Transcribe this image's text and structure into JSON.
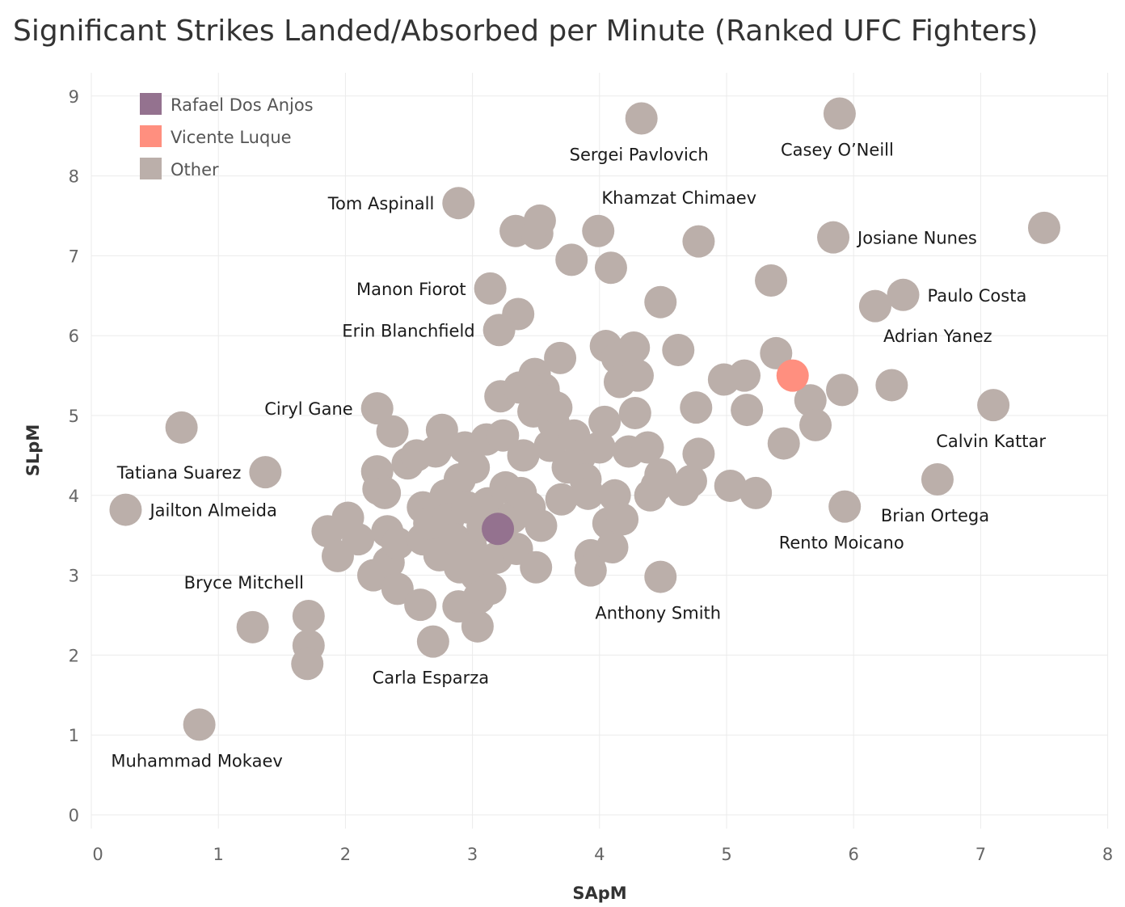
{
  "chart_data": {
    "type": "scatter",
    "title": "Significant Strikes Landed/Absorbed per Minute (Ranked UFC Fighters)",
    "xlabel": "SApM",
    "ylabel": "SLpM",
    "xlim": [
      0,
      8
    ],
    "ylim": [
      0,
      9.3
    ],
    "xticks": [
      0,
      1,
      2,
      3,
      4,
      5,
      6,
      7,
      8
    ],
    "yticks": [
      0,
      1,
      2,
      3,
      4,
      5,
      6,
      7,
      8,
      9
    ],
    "grid": true,
    "legend_position": "top-left",
    "colors": {
      "Rafael Dos Anjos": "#94728f",
      "Vicente Luque": "#ff8f7f",
      "Other": "#bbafaa"
    },
    "legend": [
      "Rafael Dos Anjos",
      "Vicente Luque",
      "Other"
    ],
    "highlights": [
      {
        "name": "Rafael Dos Anjos",
        "x": 3.2,
        "y": 3.58
      },
      {
        "name": "Vicente Luque",
        "x": 5.52,
        "y": 5.5
      }
    ],
    "labeled_points": [
      {
        "name": "Sergei Pavlovich",
        "x": 4.33,
        "y": 8.72,
        "anchor": "middle"
      },
      {
        "name": "Casey O’Neill",
        "x": 5.89,
        "y": 8.78,
        "anchor": "middle"
      },
      {
        "name": "Tom Aspinall",
        "x": 2.89,
        "y": 7.66,
        "anchor": "end"
      },
      {
        "name": "Khamzat Chimaev",
        "x": 3.99,
        "y": 7.31,
        "anchor": "above"
      },
      {
        "name": "Josiane Nunes",
        "x": 5.84,
        "y": 7.23,
        "anchor": "start"
      },
      {
        "name": "Manon Fiorot",
        "x": 3.14,
        "y": 6.59,
        "anchor": "end"
      },
      {
        "name": "Paulo Costa",
        "x": 6.39,
        "y": 6.51,
        "anchor": "start"
      },
      {
        "name": "Erin Blanchfield",
        "x": 3.21,
        "y": 6.07,
        "anchor": "end"
      },
      {
        "name": "Adrian Yanez",
        "x": 5.39,
        "y": 5.78,
        "anchor": "upper-right"
      },
      {
        "name": "Ciryl Gane",
        "x": 2.25,
        "y": 5.09,
        "anchor": "end"
      },
      {
        "name": "Calvin Kattar",
        "x": 7.1,
        "y": 5.13,
        "anchor": "below"
      },
      {
        "name": "Tatiana Suarez",
        "x": 1.37,
        "y": 4.29,
        "anchor": "end"
      },
      {
        "name": "Jailton Almeida",
        "x": 0.27,
        "y": 3.82,
        "anchor": "start"
      },
      {
        "name": "Brian Ortega",
        "x": 6.66,
        "y": 4.2,
        "anchor": "below"
      },
      {
        "name": "Rento Moicano",
        "x": 5.93,
        "y": 3.86,
        "anchor": "lower-left"
      },
      {
        "name": "Bryce Mitchell",
        "x": 1.71,
        "y": 2.49,
        "anchor": "above-left"
      },
      {
        "name": "Anthony Smith",
        "x": 4.48,
        "y": 2.98,
        "anchor": "below"
      },
      {
        "name": "Carla Esparza",
        "x": 2.69,
        "y": 2.17,
        "anchor": "below"
      },
      {
        "name": "Muhammad Mokaev",
        "x": 0.85,
        "y": 1.13,
        "anchor": "below"
      }
    ],
    "other_points": [
      [
        0.71,
        4.85
      ],
      [
        1.27,
        2.35
      ],
      [
        1.71,
        2.12
      ],
      [
        1.7,
        1.89
      ],
      [
        1.86,
        3.55
      ],
      [
        1.94,
        3.24
      ],
      [
        2.02,
        3.72
      ],
      [
        2.1,
        3.45
      ],
      [
        2.22,
        3.0
      ],
      [
        2.25,
        4.3
      ],
      [
        2.26,
        4.08
      ],
      [
        2.31,
        4.03
      ],
      [
        2.33,
        3.55
      ],
      [
        2.34,
        3.16
      ],
      [
        2.37,
        4.8
      ],
      [
        2.41,
        3.4
      ],
      [
        2.41,
        2.83
      ],
      [
        2.49,
        4.4
      ],
      [
        2.56,
        4.5
      ],
      [
        2.59,
        2.63
      ],
      [
        2.61,
        3.85
      ],
      [
        2.61,
        3.45
      ],
      [
        2.66,
        3.65
      ],
      [
        2.71,
        4.55
      ],
      [
        2.74,
        3.25
      ],
      [
        2.76,
        4.82
      ],
      [
        2.79,
        4.0
      ],
      [
        2.81,
        3.7
      ],
      [
        2.86,
        3.45
      ],
      [
        2.89,
        2.61
      ],
      [
        2.9,
        4.2
      ],
      [
        2.9,
        3.1
      ],
      [
        2.94,
        4.6
      ],
      [
        2.96,
        3.85
      ],
      [
        2.99,
        3.35
      ],
      [
        3.01,
        4.35
      ],
      [
        3.03,
        3.0
      ],
      [
        3.04,
        2.36
      ],
      [
        3.05,
        2.72
      ],
      [
        3.08,
        3.62
      ],
      [
        3.11,
        4.7
      ],
      [
        3.12,
        3.9
      ],
      [
        3.14,
        2.83
      ],
      [
        3.19,
        3.22
      ],
      [
        3.22,
        5.24
      ],
      [
        3.24,
        4.75
      ],
      [
        3.26,
        4.1
      ],
      [
        3.31,
        3.72
      ],
      [
        3.34,
        7.31
      ],
      [
        3.35,
        3.33
      ],
      [
        3.36,
        6.27
      ],
      [
        3.37,
        5.35
      ],
      [
        3.38,
        4.03
      ],
      [
        3.4,
        4.5
      ],
      [
        3.45,
        3.85
      ],
      [
        3.48,
        5.05
      ],
      [
        3.49,
        5.52
      ],
      [
        3.5,
        3.1
      ],
      [
        3.51,
        7.28
      ],
      [
        3.53,
        7.44
      ],
      [
        3.54,
        3.62
      ],
      [
        3.56,
        5.33
      ],
      [
        3.58,
        5.2
      ],
      [
        3.61,
        4.62
      ],
      [
        3.64,
        4.9
      ],
      [
        3.66,
        5.1
      ],
      [
        3.69,
        5.72
      ],
      [
        3.7,
        3.95
      ],
      [
        3.75,
        4.35
      ],
      [
        3.78,
        6.95
      ],
      [
        3.8,
        4.75
      ],
      [
        3.85,
        4.5
      ],
      [
        3.89,
        4.2
      ],
      [
        3.91,
        4.02
      ],
      [
        3.93,
        3.25
      ],
      [
        3.93,
        3.06
      ],
      [
        4.0,
        4.6
      ],
      [
        4.04,
        4.92
      ],
      [
        4.05,
        5.87
      ],
      [
        4.07,
        3.65
      ],
      [
        4.09,
        6.85
      ],
      [
        4.1,
        3.35
      ],
      [
        4.12,
        4.0
      ],
      [
        4.14,
        5.72
      ],
      [
        4.16,
        5.42
      ],
      [
        4.18,
        3.7
      ],
      [
        4.23,
        4.55
      ],
      [
        4.27,
        5.85
      ],
      [
        4.28,
        5.03
      ],
      [
        4.3,
        5.5
      ],
      [
        4.38,
        4.6
      ],
      [
        4.4,
        4.0
      ],
      [
        4.45,
        4.12
      ],
      [
        4.48,
        4.26
      ],
      [
        4.48,
        6.42
      ],
      [
        4.62,
        5.82
      ],
      [
        4.66,
        4.07
      ],
      [
        4.72,
        4.18
      ],
      [
        4.76,
        5.1
      ],
      [
        4.78,
        4.52
      ],
      [
        4.78,
        7.18
      ],
      [
        4.98,
        5.45
      ],
      [
        5.03,
        4.12
      ],
      [
        5.14,
        5.5
      ],
      [
        5.16,
        5.07
      ],
      [
        5.23,
        4.03
      ],
      [
        5.35,
        6.69
      ],
      [
        5.45,
        4.65
      ],
      [
        5.66,
        5.19
      ],
      [
        5.7,
        4.88
      ],
      [
        5.91,
        5.32
      ],
      [
        6.17,
        6.37
      ],
      [
        6.3,
        5.38
      ],
      [
        7.5,
        7.35
      ]
    ]
  }
}
